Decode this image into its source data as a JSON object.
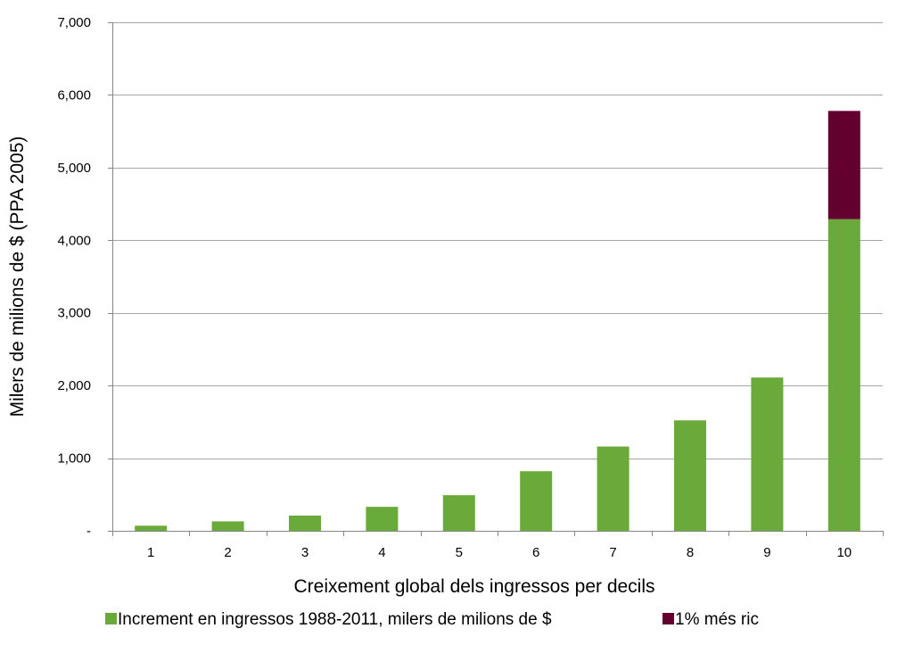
{
  "chart_data": {
    "type": "bar",
    "stacked": true,
    "categories": [
      "1",
      "2",
      "3",
      "4",
      "5",
      "6",
      "7",
      "8",
      "9",
      "10"
    ],
    "series": [
      {
        "name": "Increment en ingressos 1988-2011, milers de milions de $",
        "color": "#6aaa3a",
        "values": [
          70,
          130,
          210,
          330,
          490,
          820,
          1160,
          1520,
          2110,
          4290
        ]
      },
      {
        "name": "1% més ric",
        "color": "#64002f",
        "values": [
          0,
          0,
          0,
          0,
          0,
          0,
          0,
          0,
          0,
          1490
        ]
      }
    ],
    "title": "",
    "xlabel": "Creixement global dels ingressos per decils",
    "ylabel": "Milers de milions de $ (PPA 2005)",
    "ylim": [
      0,
      7000
    ],
    "yticks": [
      0,
      1000,
      2000,
      3000,
      4000,
      5000,
      6000,
      7000
    ],
    "ytick_labels": [
      "-",
      "1,000",
      "2,000",
      "3,000",
      "4,000",
      "5,000",
      "6,000",
      "7,000"
    ],
    "grid": true,
    "legend_position": "bottom"
  }
}
